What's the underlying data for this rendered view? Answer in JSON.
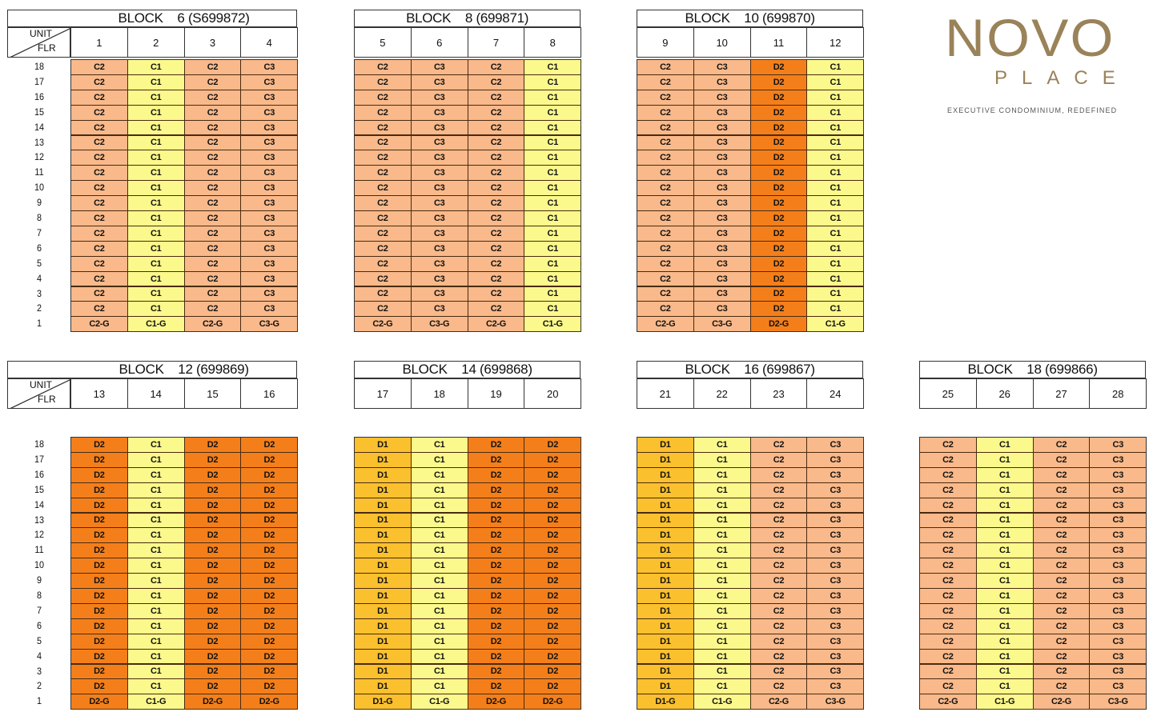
{
  "brand": {
    "name": "NOVO",
    "sub": "PLACE",
    "tagline": "EXECUTIVE CONDOMINIUM, REDEFINED"
  },
  "header_labels": {
    "unit": "UNIT",
    "flr": "FLR"
  },
  "floors": [
    "18",
    "17",
    "16",
    "15",
    "14",
    "13",
    "12",
    "11",
    "10",
    "9",
    "8",
    "7",
    "6",
    "5",
    "4",
    "3",
    "2",
    "1"
  ],
  "colors": {
    "C1": "#fbf98c",
    "C2": "#f9b98a",
    "C3": "#f9b98a",
    "D1": "#fbc02d",
    "D2": "#f47f1a"
  },
  "blocks": [
    {
      "title": "BLOCK    6 (S699872)",
      "units": [
        "1",
        "2",
        "3",
        "4"
      ],
      "types": [
        "C2",
        "C1",
        "C2",
        "C3"
      ]
    },
    {
      "title": "BLOCK    8 (699871)",
      "units": [
        "5",
        "6",
        "7",
        "8"
      ],
      "types": [
        "C2",
        "C3",
        "C2",
        "C1"
      ]
    },
    {
      "title": "BLOCK    10 (699870)",
      "units": [
        "9",
        "10",
        "11",
        "12"
      ],
      "types": [
        "C2",
        "C3",
        "D2",
        "C1"
      ]
    },
    {
      "title": "BLOCK    12 (699869)",
      "units": [
        "13",
        "14",
        "15",
        "16"
      ],
      "types": [
        "D2",
        "C1",
        "D2",
        "D2"
      ]
    },
    {
      "title": "BLOCK    14 (699868)",
      "units": [
        "17",
        "18",
        "19",
        "20"
      ],
      "types": [
        "D1",
        "C1",
        "D2",
        "D2"
      ]
    },
    {
      "title": "BLOCK    16 (699867)",
      "units": [
        "21",
        "22",
        "23",
        "24"
      ],
      "types": [
        "D1",
        "C1",
        "C2",
        "C3"
      ]
    },
    {
      "title": "BLOCK    18 (699866)",
      "units": [
        "25",
        "26",
        "27",
        "28"
      ],
      "types": [
        "C2",
        "C1",
        "C2",
        "C3"
      ]
    }
  ]
}
